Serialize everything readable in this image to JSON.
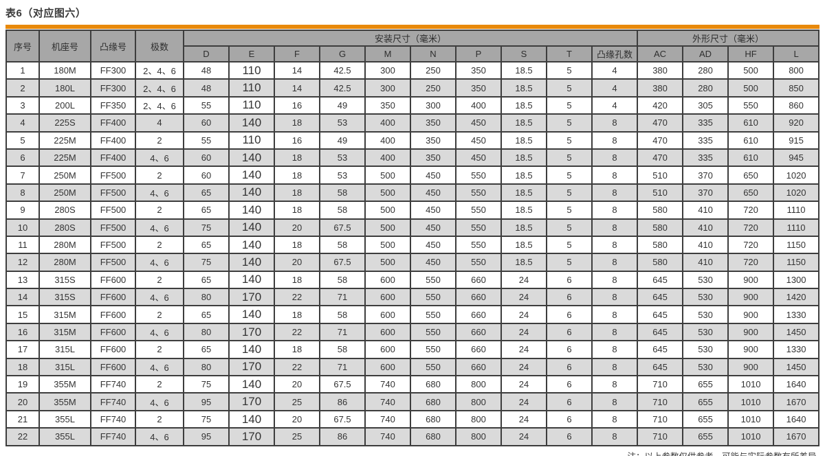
{
  "title": "表6（对应图六）",
  "note": "注：以上参数仅供参考，可能与实际参数有所差异。",
  "colors": {
    "accent_orange": "#E8890B",
    "header_gray": "#a7a7a7",
    "stripe_gray": "#dadada",
    "border_dark": "#3d3d3d"
  },
  "table": {
    "corner_headers": [
      "序号",
      "机座号",
      "凸缘号",
      "极数"
    ],
    "group_headers": {
      "mounting": "安装尺寸（毫米）",
      "overall": "外形尺寸（毫米）"
    },
    "sub_headers": [
      "D",
      "E",
      "F",
      "G",
      "M",
      "N",
      "P",
      "S",
      "T",
      "凸缘孔数",
      "AC",
      "AD",
      "HF",
      "L"
    ],
    "rows": [
      [
        "1",
        "180M",
        "FF300",
        "2、4、6",
        "48",
        "110",
        "14",
        "42.5",
        "300",
        "250",
        "350",
        "18.5",
        "5",
        "4",
        "380",
        "280",
        "500",
        "800"
      ],
      [
        "2",
        "180L",
        "FF300",
        "2、4、6",
        "48",
        "110",
        "14",
        "42.5",
        "300",
        "250",
        "350",
        "18.5",
        "5",
        "4",
        "380",
        "280",
        "500",
        "850"
      ],
      [
        "3",
        "200L",
        "FF350",
        "2、4、6",
        "55",
        "110",
        "16",
        "49",
        "350",
        "300",
        "400",
        "18.5",
        "5",
        "4",
        "420",
        "305",
        "550",
        "860"
      ],
      [
        "4",
        "225S",
        "FF400",
        "4",
        "60",
        "140",
        "18",
        "53",
        "400",
        "350",
        "450",
        "18.5",
        "5",
        "8",
        "470",
        "335",
        "610",
        "920"
      ],
      [
        "5",
        "225M",
        "FF400",
        "2",
        "55",
        "110",
        "16",
        "49",
        "400",
        "350",
        "450",
        "18.5",
        "5",
        "8",
        "470",
        "335",
        "610",
        "915"
      ],
      [
        "6",
        "225M",
        "FF400",
        "4、6",
        "60",
        "140",
        "18",
        "53",
        "400",
        "350",
        "450",
        "18.5",
        "5",
        "8",
        "470",
        "335",
        "610",
        "945"
      ],
      [
        "7",
        "250M",
        "FF500",
        "2",
        "60",
        "140",
        "18",
        "53",
        "500",
        "450",
        "550",
        "18.5",
        "5",
        "8",
        "510",
        "370",
        "650",
        "1020"
      ],
      [
        "8",
        "250M",
        "FF500",
        "4、6",
        "65",
        "140",
        "18",
        "58",
        "500",
        "450",
        "550",
        "18.5",
        "5",
        "8",
        "510",
        "370",
        "650",
        "1020"
      ],
      [
        "9",
        "280S",
        "FF500",
        "2",
        "65",
        "140",
        "18",
        "58",
        "500",
        "450",
        "550",
        "18.5",
        "5",
        "8",
        "580",
        "410",
        "720",
        "1110"
      ],
      [
        "10",
        "280S",
        "FF500",
        "4、6",
        "75",
        "140",
        "20",
        "67.5",
        "500",
        "450",
        "550",
        "18.5",
        "5",
        "8",
        "580",
        "410",
        "720",
        "1110"
      ],
      [
        "11",
        "280M",
        "FF500",
        "2",
        "65",
        "140",
        "18",
        "58",
        "500",
        "450",
        "550",
        "18.5",
        "5",
        "8",
        "580",
        "410",
        "720",
        "1150"
      ],
      [
        "12",
        "280M",
        "FF500",
        "4、6",
        "75",
        "140",
        "20",
        "67.5",
        "500",
        "450",
        "550",
        "18.5",
        "5",
        "8",
        "580",
        "410",
        "720",
        "1150"
      ],
      [
        "13",
        "315S",
        "FF600",
        "2",
        "65",
        "140",
        "18",
        "58",
        "600",
        "550",
        "660",
        "24",
        "6",
        "8",
        "645",
        "530",
        "900",
        "1300"
      ],
      [
        "14",
        "315S",
        "FF600",
        "4、6",
        "80",
        "170",
        "22",
        "71",
        "600",
        "550",
        "660",
        "24",
        "6",
        "8",
        "645",
        "530",
        "900",
        "1420"
      ],
      [
        "15",
        "315M",
        "FF600",
        "2",
        "65",
        "140",
        "18",
        "58",
        "600",
        "550",
        "660",
        "24",
        "6",
        "8",
        "645",
        "530",
        "900",
        "1330"
      ],
      [
        "16",
        "315M",
        "FF600",
        "4、6",
        "80",
        "170",
        "22",
        "71",
        "600",
        "550",
        "660",
        "24",
        "6",
        "8",
        "645",
        "530",
        "900",
        "1450"
      ],
      [
        "17",
        "315L",
        "FF600",
        "2",
        "65",
        "140",
        "18",
        "58",
        "600",
        "550",
        "660",
        "24",
        "6",
        "8",
        "645",
        "530",
        "900",
        "1330"
      ],
      [
        "18",
        "315L",
        "FF600",
        "4、6",
        "80",
        "170",
        "22",
        "71",
        "600",
        "550",
        "660",
        "24",
        "6",
        "8",
        "645",
        "530",
        "900",
        "1450"
      ],
      [
        "19",
        "355M",
        "FF740",
        "2",
        "75",
        "140",
        "20",
        "67.5",
        "740",
        "680",
        "800",
        "24",
        "6",
        "8",
        "710",
        "655",
        "1010",
        "1640"
      ],
      [
        "20",
        "355M",
        "FF740",
        "4、6",
        "95",
        "170",
        "25",
        "86",
        "740",
        "680",
        "800",
        "24",
        "6",
        "8",
        "710",
        "655",
        "1010",
        "1670"
      ],
      [
        "21",
        "355L",
        "FF740",
        "2",
        "75",
        "140",
        "20",
        "67.5",
        "740",
        "680",
        "800",
        "24",
        "6",
        "8",
        "710",
        "655",
        "1010",
        "1640"
      ],
      [
        "22",
        "355L",
        "FF740",
        "4、6",
        "95",
        "170",
        "25",
        "86",
        "740",
        "680",
        "800",
        "24",
        "6",
        "8",
        "710",
        "655",
        "1010",
        "1670"
      ]
    ]
  }
}
